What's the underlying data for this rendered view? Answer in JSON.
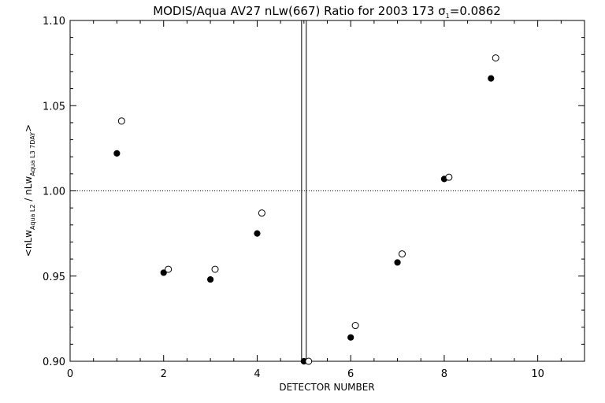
{
  "chart_data": {
    "type": "scatter",
    "title": {
      "main": "MODIS/Aqua AV27 nLw(667) Ratio for 2003 173 ",
      "sigma_symbol": "σ",
      "sigma_subscript": "1",
      "sigma_value": "=0.0862"
    },
    "xlabel": "DETECTOR NUMBER",
    "ylabel": {
      "open": "<nLw",
      "sub1": "Aqua L2",
      "mid": " / nLw",
      "sub2": "Aqua L3 7DAY",
      "close": ">"
    },
    "xlim": [
      0,
      11
    ],
    "ylim": [
      0.9,
      1.1
    ],
    "x_tick_labels": [
      "0",
      "2",
      "4",
      "6",
      "8",
      "10"
    ],
    "y_tick_labels": [
      "0.90",
      "0.95",
      "1.00",
      "1.05",
      "1.10"
    ],
    "reference_line_y": 1.0,
    "series": [
      {
        "marker": "filled-circle",
        "x": [
          1,
          2,
          3,
          4,
          5,
          6,
          7,
          8,
          9
        ],
        "y": [
          1.022,
          0.952,
          0.948,
          0.975,
          0.9,
          0.914,
          0.958,
          1.007,
          1.066
        ]
      },
      {
        "marker": "open-circle",
        "x": [
          1.1,
          2.1,
          3.1,
          4.1,
          5.1,
          6.1,
          7.1,
          8.1,
          9.1
        ],
        "y": [
          1.041,
          0.954,
          0.954,
          0.987,
          0.9,
          0.921,
          0.963,
          1.008,
          1.078
        ]
      }
    ],
    "vertical_lines_x": [
      4.95,
      5.05
    ]
  }
}
